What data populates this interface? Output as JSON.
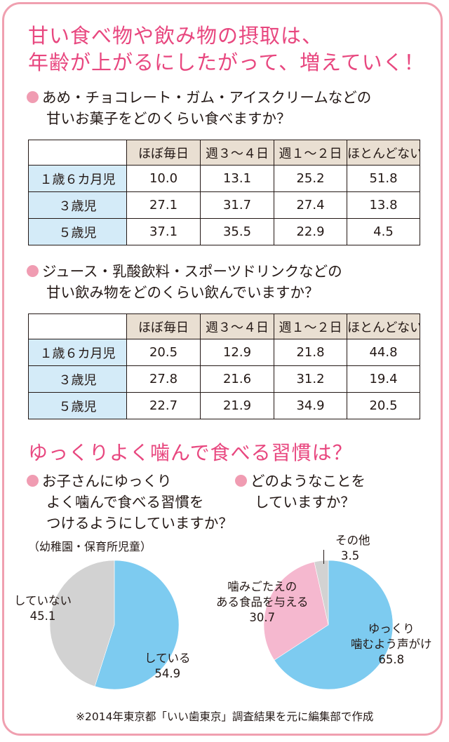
{
  "headline": {
    "line1": "甘い食べ物や飲み物の摂取は、",
    "line2": "年齢が上がるにしたがって、増えていく！"
  },
  "sweets": {
    "q_line1": "あめ・チョコレート・ガム・アイスクリームなどの",
    "q_line2": "甘いお菓子をどのくらい食べますか？",
    "columns": [
      "ほぼ毎日",
      "週３～４日",
      "週１～２日",
      "ほとんどない"
    ],
    "rows": [
      {
        "label": "１歳６カ月児",
        "values": [
          "10.0",
          "13.1",
          "25.2",
          "51.8"
        ]
      },
      {
        "label": "３歳児",
        "values": [
          "27.1",
          "31.7",
          "27.4",
          "13.8"
        ]
      },
      {
        "label": "５歳児",
        "values": [
          "37.1",
          "35.5",
          "22.9",
          "4.5"
        ]
      }
    ]
  },
  "drinks": {
    "q_line1": "ジュース・乳酸飲料・スポーツドリンクなどの",
    "q_line2": "甘い飲み物をどのくらい飲んでいますか？",
    "columns": [
      "ほぼ毎日",
      "週３～４日",
      "週１～２日",
      "ほとんどない"
    ],
    "rows": [
      {
        "label": "１歳６カ月児",
        "values": [
          "20.5",
          "12.9",
          "21.8",
          "44.8"
        ]
      },
      {
        "label": "３歳児",
        "values": [
          "27.8",
          "21.6",
          "31.2",
          "19.4"
        ]
      },
      {
        "label": "５歳児",
        "values": [
          "22.7",
          "21.9",
          "34.9",
          "20.5"
        ]
      }
    ]
  },
  "chew": {
    "title": "ゆっくりよく噛んで食べる習慣は？",
    "q1_line1": "お子さんにゆっくり",
    "q1_line2": "よく噛んで食べる習慣を",
    "q1_line3": "つけるようにしていますか？",
    "q1_note": "（幼稚園・保育所児童）",
    "q2_line1": "どのようなことを",
    "q2_line2": "していますか？"
  },
  "chart_data": [
    {
      "type": "pie",
      "series": [
        {
          "name": "している",
          "value": 54.9,
          "color": "#7dcbf0"
        },
        {
          "name": "していない",
          "value": 45.1,
          "color": "#d2d2d2"
        }
      ],
      "labels": {
        "yes_name": "している",
        "yes_value": "54.9",
        "no_name": "していない",
        "no_value": "45.1"
      }
    },
    {
      "type": "pie",
      "series": [
        {
          "name": "ゆっくり噛むよう声がけ",
          "value": 65.8,
          "color": "#7dcbf0"
        },
        {
          "name": "噛みごたえのある食品を与える",
          "value": 30.7,
          "color": "#f5b8cf"
        },
        {
          "name": "その他",
          "value": 3.5,
          "color": "#d2d2d2"
        }
      ],
      "labels": {
        "a_line1": "ゆっくり",
        "a_line2": "噛むよう声がけ",
        "a_value": "65.8",
        "b_line1": "噛みごたえの",
        "b_line2": "ある食品を与える",
        "b_value": "30.7",
        "c_name": "その他",
        "c_value": "3.5"
      }
    }
  ],
  "footnote": "※2014年東京都「いい歯東京」調査結果を元に編集部で作成"
}
